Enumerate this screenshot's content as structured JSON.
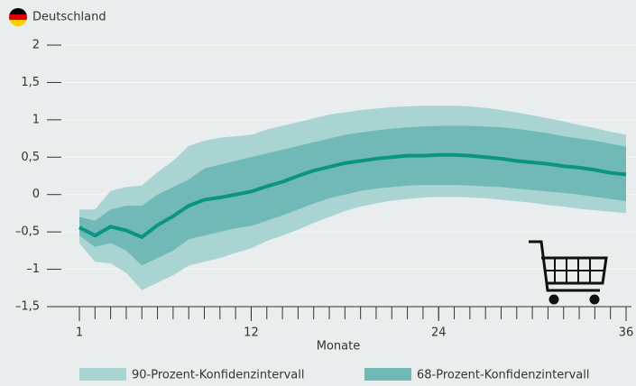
{
  "chart_data": {
    "type": "band-line",
    "title": "Deutschland",
    "xlabel": "Monate",
    "x": [
      1,
      2,
      3,
      4,
      5,
      6,
      7,
      8,
      9,
      10,
      11,
      12,
      13,
      14,
      15,
      16,
      17,
      18,
      19,
      20,
      21,
      22,
      23,
      24,
      25,
      26,
      27,
      28,
      29,
      30,
      31,
      32,
      33,
      34,
      35,
      36
    ],
    "xlim": [
      1,
      36
    ],
    "xticks": [
      1,
      12,
      24,
      36
    ],
    "ylim": [
      -1.5,
      2
    ],
    "yticks": [
      {
        "value": -1.5,
        "label": "–1,5"
      },
      {
        "value": -1,
        "label": "–1"
      },
      {
        "value": -0.5,
        "label": "–0,5"
      },
      0,
      {
        "value": 0.5,
        "label": "0,5"
      },
      1,
      {
        "value": 1.5,
        "label": "1,5"
      },
      2
    ],
    "grid": true,
    "bands": [
      {
        "name": "90-Prozent-Konfidenzintervall",
        "color": "#a9d4d2",
        "lower": [
          -0.65,
          -0.9,
          -0.92,
          -1.05,
          -1.28,
          -1.18,
          -1.08,
          -0.95,
          -0.9,
          -0.85,
          -0.78,
          -0.72,
          -0.62,
          -0.55,
          -0.47,
          -0.38,
          -0.3,
          -0.22,
          -0.16,
          -0.12,
          -0.08,
          -0.06,
          -0.04,
          -0.03,
          -0.03,
          -0.04,
          -0.05,
          -0.07,
          -0.09,
          -0.11,
          -0.14,
          -0.16,
          -0.19,
          -0.21,
          -0.23,
          -0.25
        ],
        "upper": [
          -0.2,
          -0.2,
          0.05,
          0.1,
          0.12,
          0.3,
          0.45,
          0.65,
          0.72,
          0.76,
          0.78,
          0.8,
          0.87,
          0.92,
          0.97,
          1.02,
          1.07,
          1.1,
          1.13,
          1.15,
          1.17,
          1.18,
          1.19,
          1.19,
          1.19,
          1.18,
          1.16,
          1.13,
          1.1,
          1.06,
          1.02,
          0.98,
          0.93,
          0.89,
          0.84,
          0.8
        ]
      },
      {
        "name": "68-Prozent-Konfidenzintervall",
        "color": "#70b9b6",
        "lower": [
          -0.55,
          -0.7,
          -0.65,
          -0.75,
          -0.95,
          -0.85,
          -0.75,
          -0.6,
          -0.55,
          -0.5,
          -0.45,
          -0.42,
          -0.35,
          -0.28,
          -0.2,
          -0.12,
          -0.05,
          0,
          0.05,
          0.08,
          0.1,
          0.12,
          0.13,
          0.13,
          0.13,
          0.12,
          0.11,
          0.1,
          0.08,
          0.06,
          0.04,
          0.02,
          0,
          -0.03,
          -0.06,
          -0.09
        ],
        "upper": [
          -0.3,
          -0.35,
          -0.2,
          -0.15,
          -0.15,
          0,
          0.1,
          0.2,
          0.35,
          0.4,
          0.45,
          0.5,
          0.55,
          0.6,
          0.65,
          0.7,
          0.75,
          0.8,
          0.83,
          0.86,
          0.88,
          0.9,
          0.91,
          0.92,
          0.92,
          0.92,
          0.91,
          0.9,
          0.88,
          0.85,
          0.82,
          0.78,
          0.75,
          0.72,
          0.68,
          0.64
        ]
      }
    ],
    "line": {
      "color": "#0a9482",
      "values": [
        -0.44,
        -0.55,
        -0.43,
        -0.48,
        -0.57,
        -0.41,
        -0.29,
        -0.15,
        -0.07,
        -0.04,
        0,
        0.04,
        0.11,
        0.17,
        0.25,
        0.32,
        0.37,
        0.42,
        0.45,
        0.48,
        0.5,
        0.52,
        0.52,
        0.53,
        0.53,
        0.52,
        0.5,
        0.48,
        0.45,
        0.43,
        0.41,
        0.38,
        0.36,
        0.33,
        0.29,
        0.27
      ]
    }
  }
}
